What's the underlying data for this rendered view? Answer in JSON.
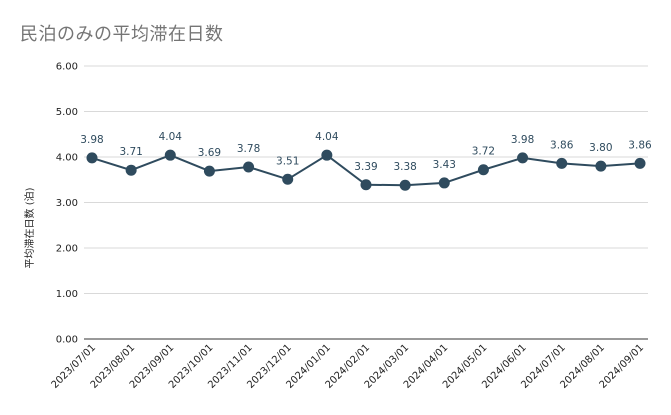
{
  "chart_data": {
    "type": "line",
    "title": "民泊のみの平均滞在日数",
    "xlabel": "",
    "ylabel": "平均滞在日数 (泊)",
    "ylim": [
      0,
      6
    ],
    "yticks": [
      "0.00",
      "1.00",
      "2.00",
      "3.00",
      "4.00",
      "5.00",
      "6.00"
    ],
    "grid": true,
    "legend": "none",
    "categories": [
      "2023/07/01",
      "2023/08/01",
      "2023/09/01",
      "2023/10/01",
      "2023/11/01",
      "2023/12/01",
      "2024/01/01",
      "2024/02/01",
      "2024/03/01",
      "2024/04/01",
      "2024/05/01",
      "2024/06/01",
      "2024/07/01",
      "2024/08/01",
      "2024/09/01"
    ],
    "series": [
      {
        "values": [
          3.98,
          3.71,
          4.04,
          3.69,
          3.78,
          3.51,
          4.04,
          3.39,
          3.38,
          3.43,
          3.72,
          3.98,
          3.86,
          3.8,
          3.86
        ],
        "labels": [
          "3.98",
          "3.71",
          "4.04",
          "3.69",
          "3.78",
          "3.51",
          "4.04",
          "3.39",
          "3.38",
          "3.43",
          "3.72",
          "3.98",
          "3.86",
          "3.80",
          "3.86"
        ],
        "color": "#2f4b5e"
      }
    ],
    "colors": {
      "grid": "#d9d9d9",
      "axis": "#333333",
      "title": "#757575"
    }
  }
}
